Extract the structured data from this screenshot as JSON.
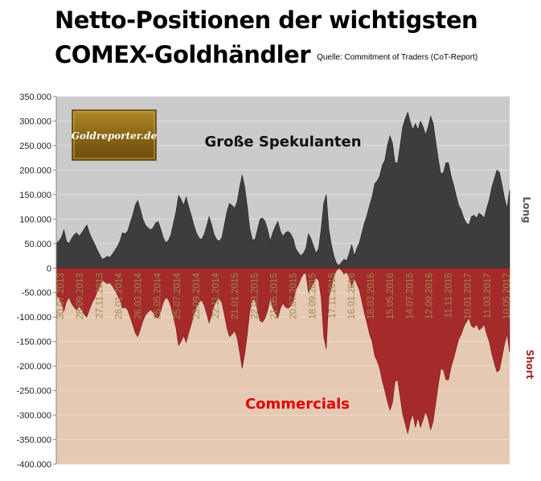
{
  "title_line1": "Netto-Positionen der wichtigsten",
  "title_line2": "COMEX-Goldhändler",
  "source": "Quelle: Commitment of Traders (CoT-Report)",
  "logo_text": "Goldreporter.de",
  "colors": {
    "long_fill": "#3d3d3d",
    "short_fill": "#a52a2a",
    "long_bg": "#cbcbcb",
    "short_bg": "#e6c9b3",
    "commercials_label": "#e00000"
  },
  "chart_data": {
    "type": "area",
    "title": "Netto-Positionen der wichtigsten COMEX-Goldhändler",
    "y_tick_labels": [
      "350.000",
      "300.000",
      "250.000",
      "200.000",
      "150.000",
      "100.000",
      "50.000",
      "0",
      "-50.000",
      "-100.000",
      "-150.000",
      "-200.000",
      "-250.000",
      "-300.000",
      "-350.000",
      "-400.000"
    ],
    "y_ticks": [
      350000,
      300000,
      250000,
      200000,
      150000,
      100000,
      50000,
      0,
      -50000,
      -100000,
      -150000,
      -200000,
      -250000,
      -300000,
      -350000,
      -400000
    ],
    "ylim": [
      -400000,
      350000
    ],
    "x_tick_labels": [
      "30.07.2013",
      "28.09.2013",
      "27.11.2013",
      "26.01.2014",
      "26.03.2014",
      "25.05.2014",
      "25.07.2014",
      "23.09.2014",
      "22.11.2014",
      "21.01.2015",
      "22.03.2015",
      "21.05.2015",
      "20.07.2015",
      "18.09.2015",
      "17.11.2015",
      "16.01.2016",
      "16.03.2016",
      "15.05.2016",
      "14.07.2016",
      "12.09.2016",
      "11.11.2016",
      "10.01.2017",
      "11.03.2017",
      "10.05.2017"
    ],
    "right_labels": {
      "long": "Long",
      "short": "Short"
    },
    "series": [
      {
        "name": "Große Spekulanten",
        "values": [
          50000,
          55000,
          62000,
          78000,
          55000,
          50000,
          60000,
          68000,
          72000,
          65000,
          72000,
          80000,
          88000,
          72000,
          60000,
          50000,
          38000,
          28000,
          18000,
          20000,
          24000,
          22000,
          28000,
          36000,
          44000,
          55000,
          72000,
          70000,
          75000,
          92000,
          108000,
          128000,
          138000,
          120000,
          100000,
          88000,
          82000,
          78000,
          82000,
          92000,
          95000,
          80000,
          62000,
          52000,
          56000,
          68000,
          92000,
          115000,
          148000,
          140000,
          128000,
          145000,
          125000,
          108000,
          88000,
          72000,
          62000,
          58000,
          68000,
          85000,
          105000,
          88000,
          68000,
          58000,
          55000,
          62000,
          88000,
          115000,
          132000,
          128000,
          122000,
          135000,
          165000,
          190000,
          165000,
          125000,
          80000,
          58000,
          58000,
          78000,
          100000,
          102000,
          95000,
          78000,
          55000,
          72000,
          85000,
          95000,
          75000,
          65000,
          72000,
          75000,
          70000,
          60000,
          40000,
          32000,
          25000,
          30000,
          40000,
          70000,
          60000,
          45000,
          30000,
          40000,
          80000,
          132000,
          150000,
          80000,
          48000,
          25000,
          10000,
          5000,
          12000,
          18000,
          15000,
          30000,
          48000,
          25000,
          40000,
          52000,
          72000,
          92000,
          108000,
          128000,
          145000,
          172000,
          178000,
          188000,
          210000,
          220000,
          250000,
          270000,
          255000,
          215000,
          215000,
          250000,
          288000,
          305000,
          318000,
          298000,
          282000,
          295000,
          282000,
          300000,
          288000,
          272000,
          288000,
          310000,
          295000,
          258000,
          222000,
          192000,
          195000,
          215000,
          215000,
          188000,
          170000,
          148000,
          128000,
          118000,
          102000,
          92000,
          88000,
          105000,
          108000,
          102000,
          112000,
          108000,
          102000,
          122000,
          140000,
          165000,
          182000,
          200000,
          195000,
          170000,
          142000,
          122000,
          160000
        ]
      },
      {
        "name": "Commercials",
        "values": [
          -55000,
          -60000,
          -72000,
          -88000,
          -68000,
          -60000,
          -72000,
          -80000,
          -85000,
          -78000,
          -85000,
          -95000,
          -100000,
          -85000,
          -72000,
          -62000,
          -50000,
          -38000,
          -25000,
          -28000,
          -32000,
          -30000,
          -36000,
          -45000,
          -55000,
          -65000,
          -82000,
          -80000,
          -85000,
          -100000,
          -115000,
          -132000,
          -140000,
          -125000,
          -108000,
          -96000,
          -90000,
          -85000,
          -90000,
          -100000,
          -102000,
          -88000,
          -70000,
          -60000,
          -64000,
          -78000,
          -100000,
          -122000,
          -158000,
          -150000,
          -138000,
          -152000,
          -132000,
          -115000,
          -95000,
          -80000,
          -70000,
          -65000,
          -75000,
          -92000,
          -112000,
          -95000,
          -76000,
          -66000,
          -62000,
          -70000,
          -95000,
          -122000,
          -140000,
          -135000,
          -128000,
          -142000,
          -172000,
          -205000,
          -175000,
          -135000,
          -88000,
          -65000,
          -65000,
          -85000,
          -108000,
          -110000,
          -102000,
          -86000,
          -62000,
          -80000,
          -92000,
          -102000,
          -82000,
          -72000,
          -80000,
          -82000,
          -78000,
          -68000,
          -45000,
          -35000,
          -22000,
          -12000,
          -10000,
          -50000,
          -40000,
          -30000,
          -20000,
          -25000,
          -60000,
          -140000,
          -165000,
          -60000,
          -40000,
          -15000,
          -5000,
          0,
          -5000,
          -12000,
          -8000,
          -20000,
          -38000,
          -20000,
          -32000,
          -45000,
          -68000,
          -92000,
          -112000,
          -135000,
          -150000,
          -178000,
          -190000,
          -205000,
          -230000,
          -250000,
          -272000,
          -290000,
          -275000,
          -232000,
          -228000,
          -262000,
          -298000,
          -318000,
          -338000,
          -312000,
          -298000,
          -325000,
          -305000,
          -325000,
          -310000,
          -292000,
          -308000,
          -330000,
          -312000,
          -275000,
          -238000,
          -205000,
          -208000,
          -228000,
          -228000,
          -202000,
          -185000,
          -165000,
          -145000,
          -135000,
          -120000,
          -110000,
          -102000,
          -118000,
          -122000,
          -115000,
          -126000,
          -122000,
          -115000,
          -135000,
          -150000,
          -175000,
          -195000,
          -212000,
          -208000,
          -182000,
          -155000,
          -135000,
          -172000
        ]
      }
    ]
  }
}
